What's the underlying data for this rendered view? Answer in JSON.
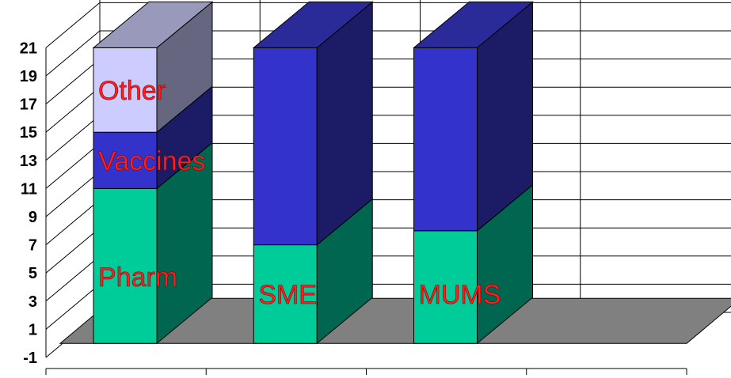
{
  "chart_data": {
    "type": "bar",
    "stacked": true,
    "three_d": true,
    "title": "",
    "xlabel": "",
    "ylabel": "",
    "ylim": [
      -1,
      21
    ],
    "yticks": [
      "-1",
      "1",
      "3",
      "5",
      "7",
      "9",
      "11",
      "13",
      "15",
      "17",
      "19",
      "21"
    ],
    "grid": true,
    "legend": "none",
    "categories": [
      "",
      "",
      ""
    ],
    "series": [
      {
        "key": "lower",
        "values": [
          11,
          7,
          8
        ],
        "front": "#00cc99",
        "side": "#006650",
        "top": "#33d9aa"
      },
      {
        "key": "middle",
        "values": [
          4,
          14,
          13
        ],
        "front": "#3333cc",
        "side": "#1b1b66",
        "top": "#2a2a99"
      },
      {
        "key": "upper",
        "values": [
          6,
          0,
          0
        ],
        "front": "#ccccff",
        "side": "#666680",
        "top": "#9999bb"
      }
    ],
    "annotations": [
      {
        "bar": 0,
        "series": "upper",
        "text": "Other"
      },
      {
        "bar": 0,
        "series": "middle",
        "text": "Vaccines"
      },
      {
        "bar": 0,
        "series": "lower",
        "text": "Pharm"
      },
      {
        "bar": 1,
        "series": "lower",
        "text": "SME"
      },
      {
        "bar": 2,
        "series": "lower",
        "text": "MUMS"
      }
    ],
    "colors": {
      "floor": "#808080",
      "floor_edge": "#000000",
      "grid": "#000000",
      "label": "#ff2020"
    }
  }
}
